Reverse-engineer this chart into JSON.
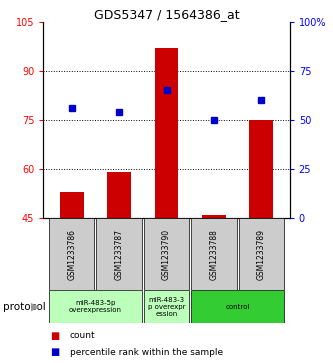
{
  "title": "GDS5347 / 1564386_at",
  "samples": [
    "GSM1233786",
    "GSM1233787",
    "GSM1233790",
    "GSM1233788",
    "GSM1233789"
  ],
  "bar_values": [
    53,
    59,
    97,
    46,
    75
  ],
  "percentile_values": [
    56,
    54,
    65,
    50,
    60
  ],
  "bar_bottom": 45,
  "ylim_left": [
    45,
    105
  ],
  "ylim_right": [
    0,
    100
  ],
  "yticks_left": [
    45,
    60,
    75,
    90,
    105
  ],
  "yticks_right": [
    0,
    25,
    50,
    75,
    100
  ],
  "bar_color": "#cc0000",
  "percentile_color": "#0000cc",
  "groups": [
    {
      "start": 0,
      "end": 1,
      "label": "miR-483-5p\noverexpression",
      "color": "#bbffbb"
    },
    {
      "start": 2,
      "end": 2,
      "label": "miR-483-3\np overexpr\nession",
      "color": "#bbffbb"
    },
    {
      "start": 3,
      "end": 4,
      "label": "control",
      "color": "#33cc33"
    }
  ],
  "protocol_label": "protocol",
  "legend_count": "count",
  "legend_percentile": "percentile rank within the sample",
  "bar_width": 0.5,
  "background_color": "#ffffff",
  "label_bg": "#cccccc"
}
